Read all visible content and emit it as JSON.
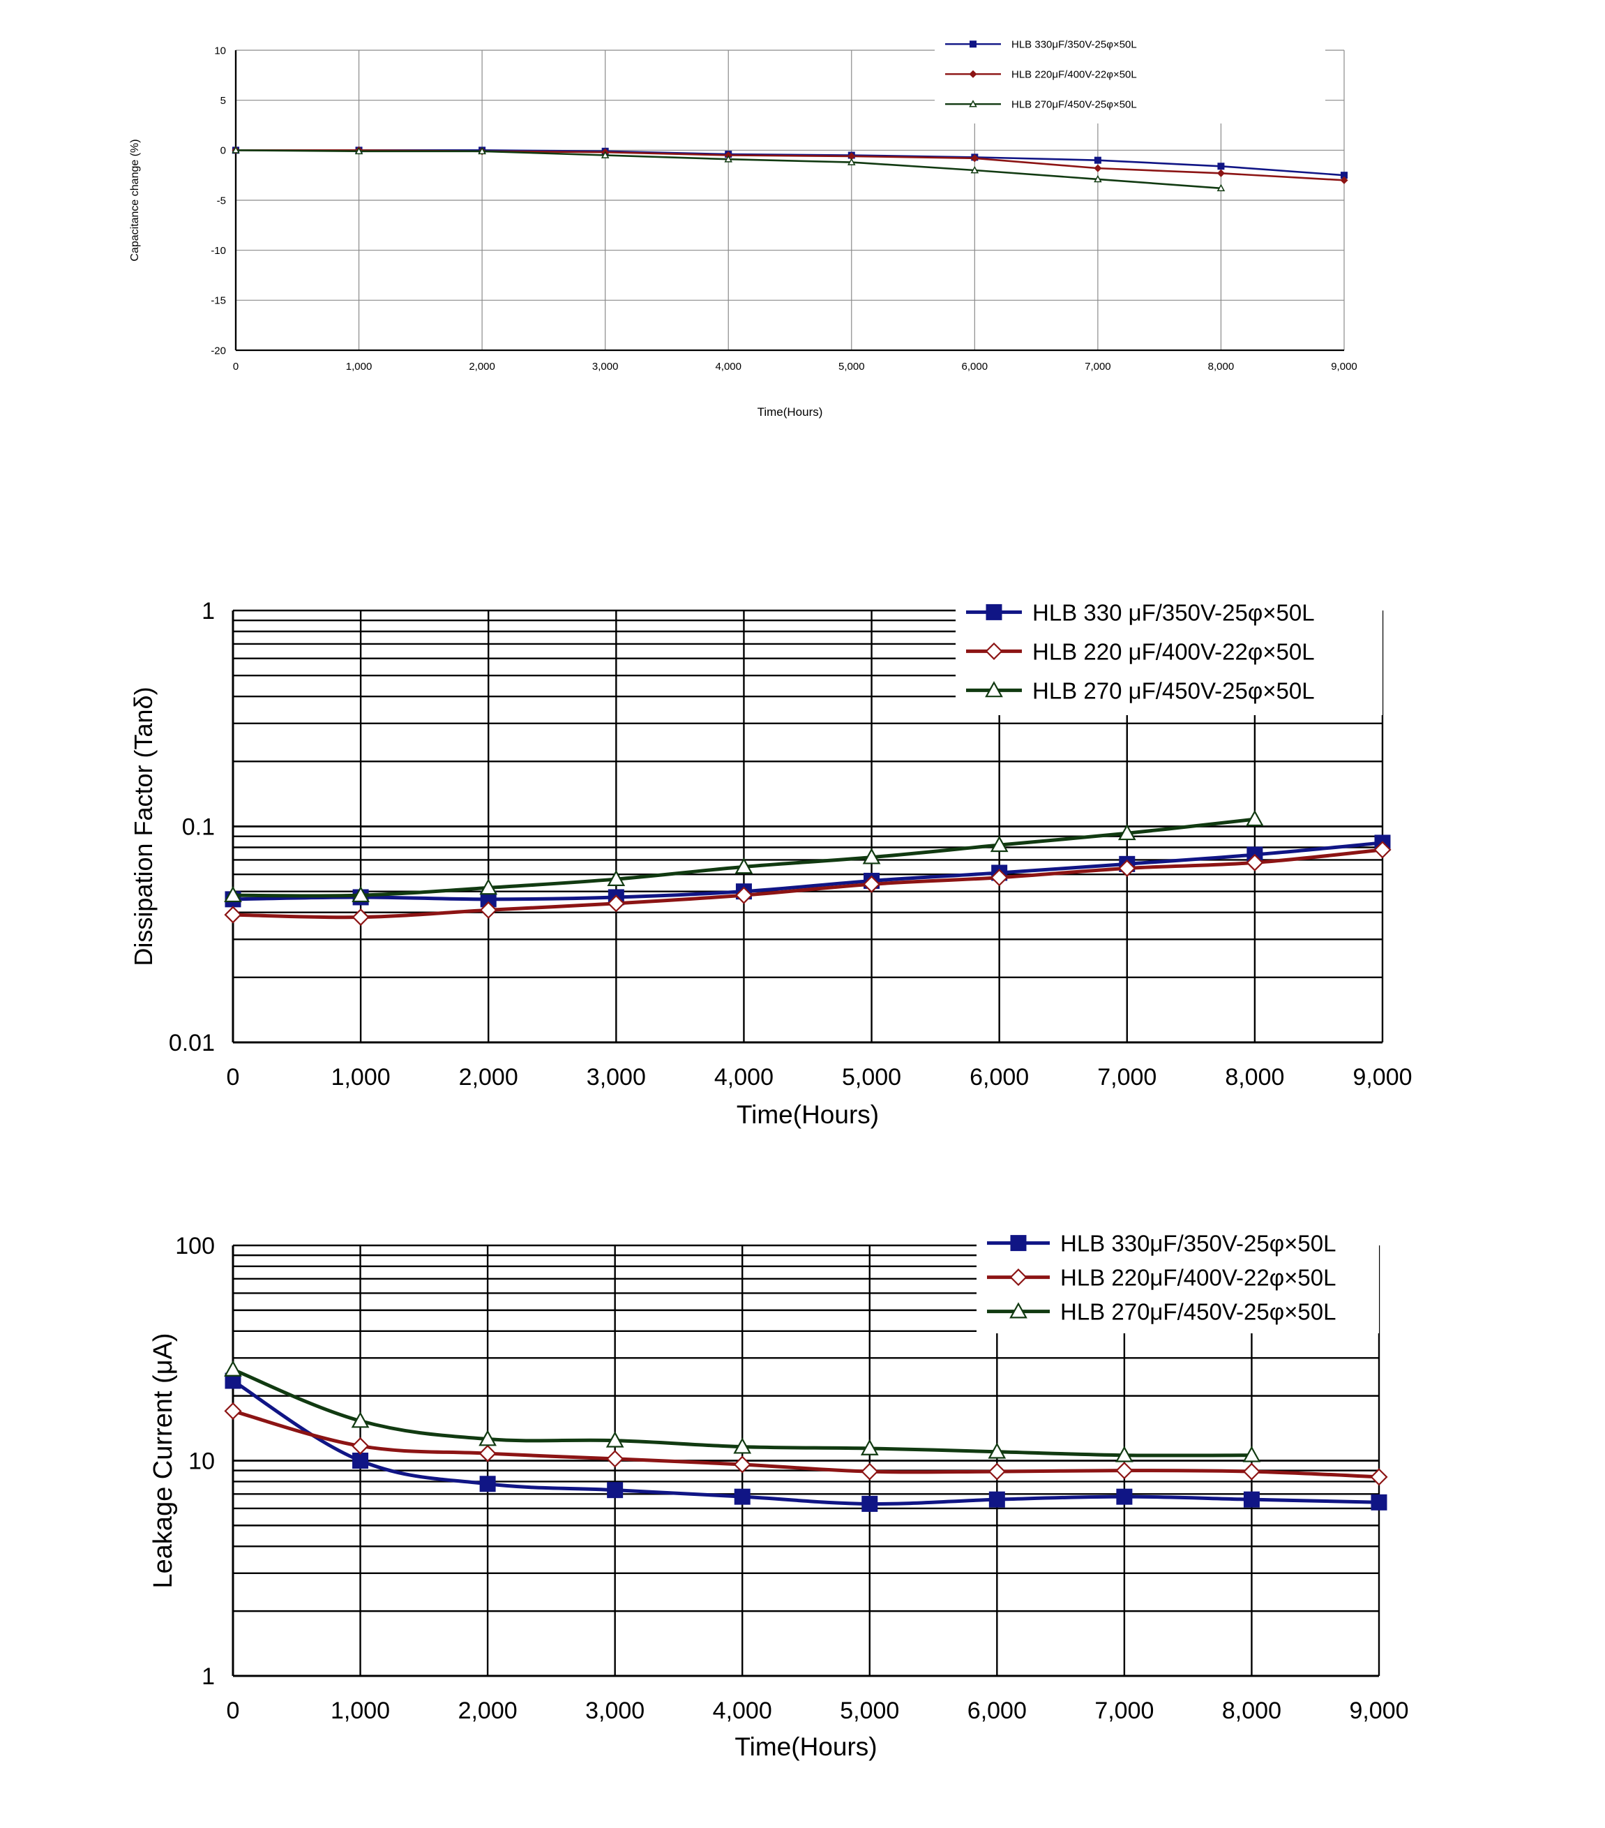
{
  "colors": {
    "series_blue": "#101585",
    "series_red": "#8c1414",
    "series_green": "#113a11",
    "grid": "#000000"
  },
  "chart_data": [
    {
      "type": "line",
      "ylabel": "Capacitance change (%)",
      "xlabel": "Time(Hours)",
      "xlim": [
        0,
        9000
      ],
      "ylim": [
        -20,
        10
      ],
      "yscale": "linear",
      "grid": true,
      "legend_position": "top-right",
      "x_ticks": [
        "0",
        "1,000",
        "2,000",
        "3,000",
        "4,000",
        "5,000",
        "6,000",
        "7,000",
        "8,000",
        "9,000"
      ],
      "y_ticks": [
        "10",
        "5",
        "0",
        "-5",
        "-10",
        "-15",
        "-20"
      ],
      "series": [
        {
          "name": "HLB 330μF/350V-25φ×50L",
          "marker": "square-filled",
          "x": [
            0,
            1000,
            2000,
            3000,
            4000,
            5000,
            6000,
            7000,
            8000,
            9000
          ],
          "values": [
            0,
            0,
            0,
            -0.1,
            -0.4,
            -0.5,
            -0.7,
            -1.0,
            -1.6,
            -2.5
          ]
        },
        {
          "name": "HLB 220μF/400V-22φ×50L",
          "marker": "diamond-filled",
          "x": [
            0,
            1000,
            2000,
            3000,
            4000,
            5000,
            6000,
            7000,
            8000,
            9000
          ],
          "values": [
            0,
            0,
            -0.1,
            -0.2,
            -0.5,
            -0.6,
            -0.8,
            -1.8,
            -2.3,
            -3.0
          ]
        },
        {
          "name": "HLB 270μF/450V-25φ×50L",
          "marker": "triangle-open",
          "x": [
            0,
            1000,
            2000,
            3000,
            4000,
            5000,
            6000,
            7000,
            8000
          ],
          "values": [
            0,
            -0.1,
            -0.1,
            -0.5,
            -0.9,
            -1.2,
            -2.0,
            -2.9,
            -3.8
          ]
        }
      ]
    },
    {
      "type": "line",
      "ylabel": "Dissipation Factor (Tanδ)",
      "xlabel": "Time(Hours)",
      "xlim": [
        0,
        9000
      ],
      "ylim": [
        0.01,
        1
      ],
      "yscale": "log",
      "grid": true,
      "legend_position": "top-right",
      "x_ticks": [
        "0",
        "1,000",
        "2,000",
        "3,000",
        "4,000",
        "5,000",
        "6,000",
        "7,000",
        "8,000",
        "9,000"
      ],
      "y_ticks": [
        "1",
        "0.1",
        "0.01"
      ],
      "series": [
        {
          "name": "HLB 330 μF/350V-25φ×50L",
          "marker": "square-filled",
          "x": [
            0,
            1000,
            2000,
            3000,
            4000,
            5000,
            6000,
            7000,
            8000,
            9000
          ],
          "values": [
            0.046,
            0.047,
            0.046,
            0.047,
            0.05,
            0.056,
            0.061,
            0.067,
            0.074,
            0.084
          ]
        },
        {
          "name": "HLB 220 μF/400V-22φ×50L",
          "marker": "diamond-open",
          "x": [
            0,
            1000,
            2000,
            3000,
            4000,
            5000,
            6000,
            7000,
            8000,
            9000
          ],
          "values": [
            0.039,
            0.038,
            0.041,
            0.044,
            0.048,
            0.054,
            0.058,
            0.064,
            0.068,
            0.078
          ]
        },
        {
          "name": "HLB 270 μF/450V-25φ×50L",
          "marker": "triangle-open",
          "x": [
            0,
            1000,
            2000,
            3000,
            4000,
            5000,
            6000,
            7000,
            8000
          ],
          "values": [
            0.048,
            0.048,
            0.052,
            0.057,
            0.065,
            0.072,
            0.082,
            0.093,
            0.108
          ]
        }
      ]
    },
    {
      "type": "line",
      "ylabel": "Leakage Current (μA)",
      "xlabel": "Time(Hours)",
      "xlim": [
        0,
        9000
      ],
      "ylim": [
        1,
        100
      ],
      "yscale": "log",
      "grid": true,
      "legend_position": "top-right",
      "x_ticks": [
        "0",
        "1,000",
        "2,000",
        "3,000",
        "4,000",
        "5,000",
        "6,000",
        "7,000",
        "8,000",
        "9,000"
      ],
      "y_ticks": [
        "100",
        "10",
        "1"
      ],
      "series": [
        {
          "name": "HLB   330μF/350V-25φ×50L",
          "marker": "square-filled",
          "x": [
            0,
            1000,
            2000,
            3000,
            4000,
            5000,
            6000,
            7000,
            8000,
            9000
          ],
          "values": [
            23.5,
            10.0,
            7.8,
            7.3,
            6.8,
            6.3,
            6.6,
            6.8,
            6.6,
            6.4
          ]
        },
        {
          "name": "HLB   220μF/400V-22φ×50L",
          "marker": "diamond-open",
          "x": [
            0,
            1000,
            2000,
            3000,
            4000,
            5000,
            6000,
            7000,
            8000,
            9000
          ],
          "values": [
            17.0,
            11.7,
            10.8,
            10.2,
            9.6,
            8.9,
            8.9,
            9.0,
            8.9,
            8.4
          ]
        },
        {
          "name": "HLB 270μF/450V-25φ×50L",
          "marker": "triangle-open",
          "x": [
            0,
            1000,
            2000,
            3000,
            4000,
            5000,
            6000,
            7000,
            8000
          ],
          "values": [
            26.5,
            15.3,
            12.6,
            12.4,
            11.6,
            11.4,
            11.0,
            10.6,
            10.6
          ]
        }
      ]
    }
  ]
}
